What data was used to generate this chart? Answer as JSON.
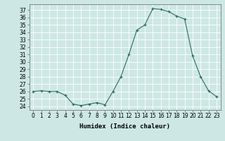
{
  "x": [
    0,
    1,
    2,
    3,
    4,
    5,
    6,
    7,
    8,
    9,
    10,
    11,
    12,
    13,
    14,
    15,
    16,
    17,
    18,
    19,
    20,
    21,
    22,
    23
  ],
  "y": [
    26,
    26.1,
    26,
    26,
    25.5,
    24.3,
    24.1,
    24.3,
    24.5,
    24.2,
    26,
    28,
    31,
    34.3,
    35,
    37.2,
    37.1,
    36.8,
    36.2,
    35.8,
    30.8,
    28,
    26.1,
    25.3
  ],
  "line_color": "#2e6b5e",
  "marker": "+",
  "marker_size": 3,
  "marker_linewidth": 0.8,
  "line_width": 0.8,
  "bg_color": "#cde8e4",
  "grid_color": "#ffffff",
  "xlabel": "Humidex (Indice chaleur)",
  "xlim": [
    -0.5,
    23.5
  ],
  "ylim": [
    23.5,
    37.8
  ],
  "yticks": [
    24,
    25,
    26,
    27,
    28,
    29,
    30,
    31,
    32,
    33,
    34,
    35,
    36,
    37
  ],
  "xticks": [
    0,
    1,
    2,
    3,
    4,
    5,
    6,
    7,
    8,
    9,
    10,
    11,
    12,
    13,
    14,
    15,
    16,
    17,
    18,
    19,
    20,
    21,
    22,
    23
  ],
  "tick_fontsize": 5.5,
  "label_fontsize": 6.5
}
